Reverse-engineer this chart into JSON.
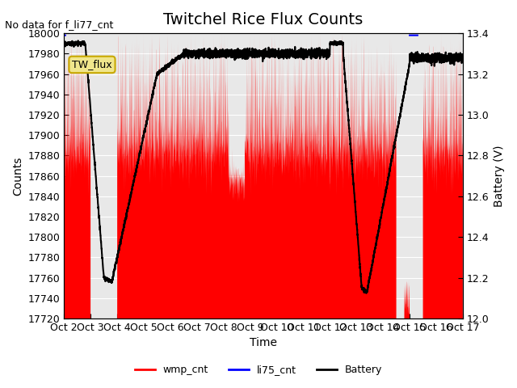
{
  "title": "Twitchel Rice Flux Counts",
  "xlabel": "Time",
  "ylabel_left": "Counts",
  "ylabel_right": "Battery (V)",
  "ylim_left": [
    17720,
    18000
  ],
  "ylim_right": [
    12.0,
    13.4
  ],
  "xlim": [
    0,
    15
  ],
  "xtick_labels": [
    "Oct 2",
    "Oct 3",
    "Oct 4",
    "Oct 5",
    "Oct 6",
    "Oct 7",
    "Oct 8",
    "Oct 9",
    "Oct 10",
    "Oct 11",
    "Oct 12",
    "Oct 13",
    "Oct 14",
    "Oct 15",
    "Oct 16",
    "Oct 17"
  ],
  "xtick_positions": [
    0,
    1,
    2,
    3,
    4,
    5,
    6,
    7,
    8,
    9,
    10,
    11,
    12,
    13,
    14,
    15
  ],
  "annotation_text": "No data for f_li77_cnt",
  "box_text": "TW_flux",
  "legend_labels": [
    "wmp_cnt",
    "li75_cnt",
    "Battery"
  ],
  "legend_colors": [
    "red",
    "blue",
    "black"
  ],
  "background_color": "#e8e8e8",
  "title_fontsize": 14,
  "axis_fontsize": 10,
  "tick_fontsize": 9
}
